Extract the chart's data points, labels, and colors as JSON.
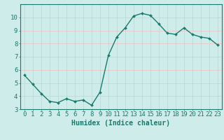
{
  "x": [
    0,
    1,
    2,
    3,
    4,
    5,
    6,
    7,
    8,
    9,
    10,
    11,
    12,
    13,
    14,
    15,
    16,
    17,
    18,
    19,
    20,
    21,
    22,
    23
  ],
  "y": [
    5.6,
    4.9,
    4.2,
    3.6,
    3.5,
    3.8,
    3.6,
    3.7,
    3.3,
    4.3,
    7.1,
    8.5,
    9.2,
    10.1,
    10.3,
    10.15,
    9.5,
    8.8,
    8.7,
    9.2,
    8.7,
    8.5,
    8.4,
    7.9
  ],
  "line_color": "#1a7a6e",
  "marker": "D",
  "marker_size": 2.0,
  "linewidth": 1.0,
  "xlabel": "Humidex (Indice chaleur)",
  "xlim": [
    -0.5,
    23.5
  ],
  "ylim": [
    3,
    11
  ],
  "yticks": [
    3,
    4,
    5,
    6,
    7,
    8,
    9,
    10
  ],
  "xticks": [
    0,
    1,
    2,
    3,
    4,
    5,
    6,
    7,
    8,
    9,
    10,
    11,
    12,
    13,
    14,
    15,
    16,
    17,
    18,
    19,
    20,
    21,
    22,
    23
  ],
  "background_color": "#ceecea",
  "grid_color": "#e8c8c8",
  "tick_color": "#1a7a6e",
  "label_color": "#1a7a6e",
  "xlabel_fontsize": 7,
  "tick_fontsize": 6.5
}
